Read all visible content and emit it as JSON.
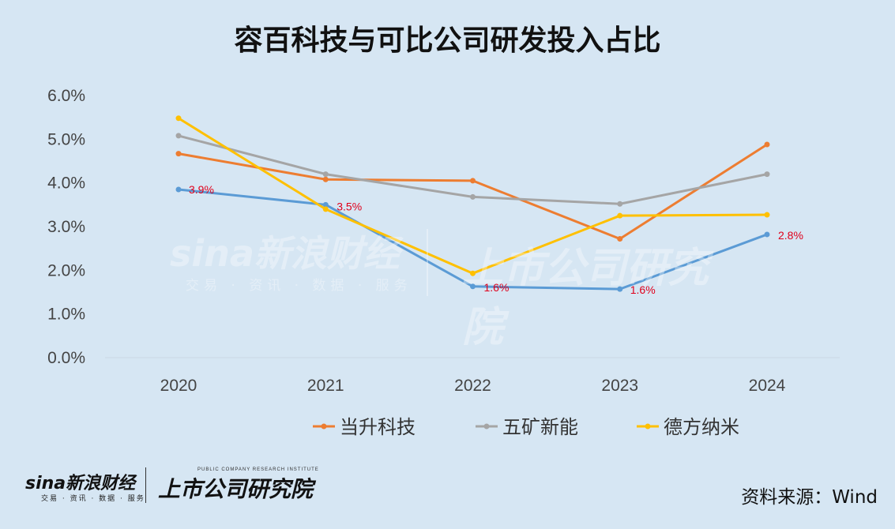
{
  "chart_data": {
    "type": "line",
    "title": "容百科技与可比公司研发投入占比",
    "x": [
      "2020",
      "2021",
      "2022",
      "2023",
      "2024"
    ],
    "ylim": [
      0,
      6
    ],
    "yticks": [
      "0.0%",
      "1.0%",
      "2.0%",
      "3.0%",
      "4.0%",
      "5.0%",
      "6.0%"
    ],
    "grid": "horizontal",
    "legend_position": "bottom",
    "series": [
      {
        "name": "容百科技",
        "color": "#5b9bd5",
        "values": [
          3.85,
          3.5,
          1.63,
          1.57,
          2.82
        ],
        "labels": [
          "3.9%",
          "3.5%",
          "1.6%",
          "1.6%",
          "2.8%"
        ],
        "in_legend": false
      },
      {
        "name": "当升科技",
        "color": "#ed7d31",
        "values": [
          4.67,
          4.08,
          4.05,
          2.72,
          4.88
        ],
        "in_legend": true
      },
      {
        "name": "五矿新能",
        "color": "#a5a5a5",
        "values": [
          5.08,
          4.2,
          3.68,
          3.52,
          4.2
        ],
        "in_legend": true
      },
      {
        "name": "德方纳米",
        "color": "#ffc000",
        "values": [
          5.48,
          3.4,
          1.93,
          3.25,
          3.27
        ],
        "in_legend": true
      }
    ]
  },
  "watermark": {
    "sina": "sina新浪财经",
    "sina_sub": "交易 · 资讯 · 数据 · 服务",
    "research": "上市公司研究院"
  },
  "footer": {
    "sina": "sina新浪财经",
    "sina_sub": "交易 · 资讯 · 数据 · 服务",
    "research": "上市公司研究院",
    "research_en": "PUBLIC COMPANY RESEARCH INSTITUTE",
    "source": "资料来源：Wind"
  }
}
